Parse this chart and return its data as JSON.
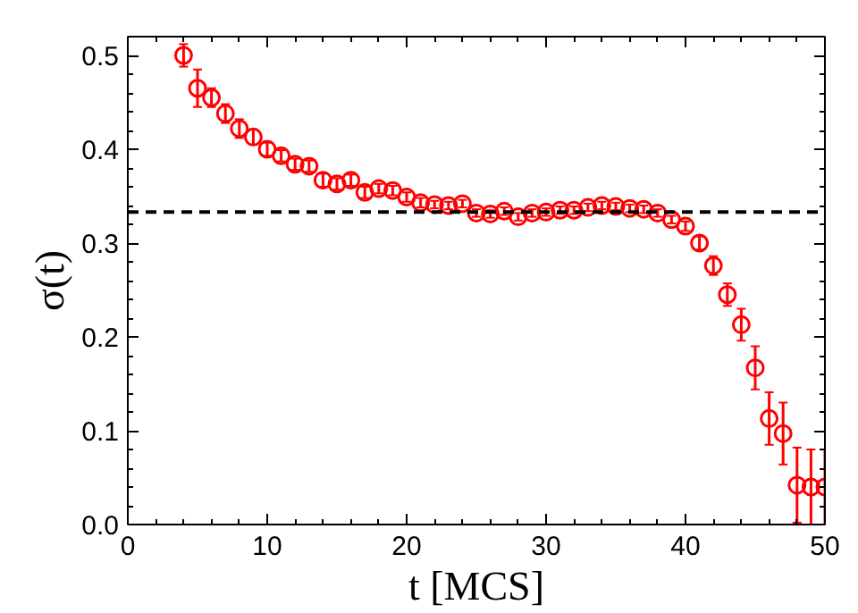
{
  "chart_data": {
    "type": "scatter",
    "xlabel": "t [MCS]",
    "ylabel": "σ(t)",
    "x": [
      4,
      5,
      6,
      7,
      8,
      9,
      10,
      11,
      12,
      13,
      14,
      15,
      16,
      17,
      18,
      19,
      20,
      21,
      22,
      23,
      24,
      25,
      26,
      27,
      28,
      29,
      30,
      31,
      32,
      33,
      34,
      35,
      36,
      37,
      38,
      39,
      40,
      41,
      42,
      43,
      44,
      45,
      46,
      47,
      48,
      49,
      50
    ],
    "series": [
      {
        "color": "#ff0000",
        "values": [
          0.5,
          0.465,
          0.455,
          0.438,
          0.422,
          0.413,
          0.4,
          0.393,
          0.384,
          0.382,
          0.367,
          0.363,
          0.367,
          0.354,
          0.358,
          0.356,
          0.349,
          0.343,
          0.341,
          0.34,
          0.342,
          0.332,
          0.331,
          0.334,
          0.328,
          0.332,
          0.333,
          0.335,
          0.335,
          0.338,
          0.34,
          0.339,
          0.337,
          0.336,
          0.332,
          0.325,
          0.318,
          0.3,
          0.276,
          0.245,
          0.213,
          0.167,
          0.113,
          0.097,
          0.042,
          0.04,
          0.04
        ],
        "errors": [
          0.012,
          0.02,
          0.01,
          0.01,
          0.01,
          0.008,
          0.007,
          0.006,
          0.006,
          0.006,
          0.007,
          0.006,
          0.006,
          0.006,
          0.005,
          0.005,
          0.005,
          0.005,
          0.004,
          0.004,
          0.004,
          0.004,
          0.004,
          0.004,
          0.004,
          0.004,
          0.004,
          0.004,
          0.004,
          0.004,
          0.004,
          0.004,
          0.004,
          0.004,
          0.004,
          0.004,
          0.005,
          0.007,
          0.01,
          0.012,
          0.017,
          0.023,
          0.028,
          0.033,
          0.04,
          0.04,
          0.04
        ]
      }
    ],
    "marker": "circle",
    "xlim": [
      0,
      50
    ],
    "xticks": [
      0,
      10,
      20,
      30,
      40,
      50
    ],
    "ylim": [
      0,
      0.52
    ],
    "yticks": [
      {
        "value": 0,
        "label": "0.0"
      },
      {
        "value": 0.1,
        "label": "0.1"
      },
      {
        "value": 0.2,
        "label": "0.2"
      },
      {
        "value": 0.3,
        "label": "0.3"
      },
      {
        "value": 0.4,
        "label": "0.4"
      },
      {
        "value": 0.5,
        "label": "0.5"
      }
    ],
    "ref_lines": [
      {
        "axis": "y",
        "value": 0.333,
        "color": "#000000",
        "line_style": "dashed"
      }
    ],
    "grid": false
  }
}
